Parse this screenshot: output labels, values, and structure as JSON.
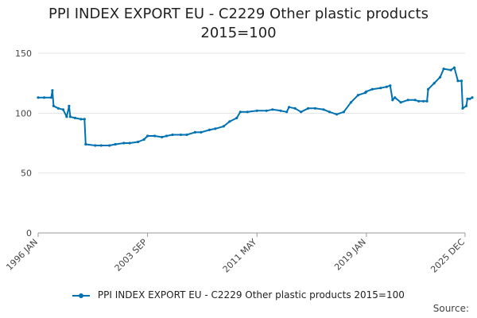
{
  "chart_data": {
    "type": "line",
    "title": "PPI INDEX EXPORT EU - C2229 Other plastic products",
    "subtitle": "2015=100",
    "xlabel": "",
    "ylabel": "",
    "ylim": [
      0,
      150
    ],
    "yticks": [
      "0",
      "50",
      "100",
      "150"
    ],
    "xticks": [
      "1996 JAN",
      "2003 SEP",
      "2011 MAY",
      "2019 JAN",
      "2025 DEC"
    ],
    "grid": true,
    "legend_position": "bottom",
    "series": [
      {
        "name": "PPI INDEX EXPORT EU - C2229 Other plastic products 2015=100",
        "color": "#0072b2",
        "points": [
          [
            "1996-01",
            113
          ],
          [
            "1996-06",
            113
          ],
          [
            "1996-12",
            113
          ],
          [
            "1997-01",
            119
          ],
          [
            "1997-02",
            106
          ],
          [
            "1997-06",
            104
          ],
          [
            "1997-10",
            103
          ],
          [
            "1998-01",
            97
          ],
          [
            "1998-03",
            106
          ],
          [
            "1998-04",
            97
          ],
          [
            "1998-08",
            96
          ],
          [
            "1999-01",
            95
          ],
          [
            "1999-04",
            95
          ],
          [
            "1999-05",
            74
          ],
          [
            "2000-01",
            73
          ],
          [
            "2000-06",
            73
          ],
          [
            "2001-01",
            73
          ],
          [
            "2001-06",
            74
          ],
          [
            "2002-01",
            75
          ],
          [
            "2002-06",
            75
          ],
          [
            "2003-01",
            76
          ],
          [
            "2003-06",
            78
          ],
          [
            "2003-09",
            81
          ],
          [
            "2004-03",
            81
          ],
          [
            "2004-09",
            80
          ],
          [
            "2005-01",
            81
          ],
          [
            "2005-06",
            82
          ],
          [
            "2006-01",
            82
          ],
          [
            "2006-06",
            82
          ],
          [
            "2007-01",
            84
          ],
          [
            "2007-06",
            84
          ],
          [
            "2008-01",
            86
          ],
          [
            "2008-06",
            87
          ],
          [
            "2009-01",
            89
          ],
          [
            "2009-06",
            93
          ],
          [
            "2009-12",
            96
          ],
          [
            "2010-03",
            101
          ],
          [
            "2010-09",
            101
          ],
          [
            "2011-05",
            102
          ],
          [
            "2012-01",
            102
          ],
          [
            "2012-06",
            103
          ],
          [
            "2013-01",
            102
          ],
          [
            "2013-06",
            101
          ],
          [
            "2013-08",
            105
          ],
          [
            "2014-01",
            104
          ],
          [
            "2014-06",
            101
          ],
          [
            "2014-12",
            104
          ],
          [
            "2015-06",
            104
          ],
          [
            "2016-01",
            103
          ],
          [
            "2016-06",
            101
          ],
          [
            "2016-12",
            99
          ],
          [
            "2017-06",
            101
          ],
          [
            "2017-12",
            109
          ],
          [
            "2018-06",
            115
          ],
          [
            "2018-12",
            117
          ],
          [
            "2019-01",
            118
          ],
          [
            "2019-06",
            120
          ],
          [
            "2020-01",
            121
          ],
          [
            "2020-06",
            122
          ],
          [
            "2020-09",
            123
          ],
          [
            "2020-11",
            111
          ],
          [
            "2021-01",
            113
          ],
          [
            "2021-06",
            109
          ],
          [
            "2021-12",
            111
          ],
          [
            "2022-06",
            111
          ],
          [
            "2022-09",
            110
          ],
          [
            "2023-01",
            110
          ],
          [
            "2023-04",
            110
          ],
          [
            "2023-05",
            120
          ],
          [
            "2023-10",
            125
          ],
          [
            "2024-03",
            130
          ],
          [
            "2024-06",
            137
          ],
          [
            "2024-12",
            136
          ],
          [
            "2025-03",
            138
          ],
          [
            "2025-06",
            127
          ],
          [
            "2025-09",
            127
          ],
          [
            "2025-10",
            104
          ],
          [
            "2026-01",
            106
          ],
          [
            "2026-02",
            112
          ],
          [
            "2026-04",
            112
          ],
          [
            "2026-06",
            113
          ]
        ]
      }
    ]
  },
  "footer": {
    "source_label": "Source:"
  }
}
